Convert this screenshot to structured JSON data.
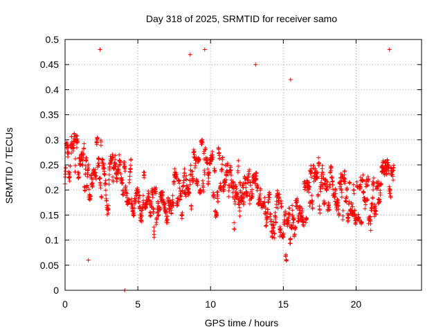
{
  "chart_data": {
    "type": "scatter",
    "title": "Day 318 of 2025, SRMTID for receiver samo",
    "xlabel": "GPS time / hours",
    "ylabel": "SRMTID / TECUs",
    "xlim": [
      0,
      24.5
    ],
    "ylim": [
      0,
      0.5
    ],
    "x_ticks": [
      0,
      5,
      10,
      15,
      20
    ],
    "x_tick_labels": [
      "0",
      "5",
      "10",
      "15",
      "20"
    ],
    "y_ticks": [
      0,
      0.05,
      0.1,
      0.15,
      0.2,
      0.25,
      0.3,
      0.35,
      0.4,
      0.45,
      0.5
    ],
    "y_tick_labels": [
      "0",
      "0.05",
      "0.1",
      "0.15",
      "0.2",
      "0.25",
      "0.3",
      "0.35",
      "0.4",
      "0.45",
      "0.5"
    ],
    "grid": true,
    "marker": "+",
    "color": "#ff0000",
    "x_range_of_data": [
      0,
      22.6
    ],
    "mean_profile": [
      [
        0.0,
        0.26
      ],
      [
        0.5,
        0.3
      ],
      [
        1.0,
        0.25
      ],
      [
        1.5,
        0.22
      ],
      [
        2.0,
        0.24
      ],
      [
        2.5,
        0.25
      ],
      [
        3.0,
        0.23
      ],
      [
        3.5,
        0.24
      ],
      [
        4.0,
        0.21
      ],
      [
        4.5,
        0.19
      ],
      [
        5.0,
        0.17
      ],
      [
        5.5,
        0.18
      ],
      [
        6.0,
        0.17
      ],
      [
        6.5,
        0.19
      ],
      [
        7.0,
        0.18
      ],
      [
        7.5,
        0.2
      ],
      [
        8.0,
        0.19
      ],
      [
        8.5,
        0.22
      ],
      [
        9.0,
        0.25
      ],
      [
        9.5,
        0.26
      ],
      [
        10.0,
        0.23
      ],
      [
        10.5,
        0.21
      ],
      [
        11.0,
        0.22
      ],
      [
        11.5,
        0.2
      ],
      [
        12.0,
        0.2
      ],
      [
        12.5,
        0.19
      ],
      [
        13.0,
        0.22
      ],
      [
        13.5,
        0.16
      ],
      [
        14.0,
        0.16
      ],
      [
        14.5,
        0.15
      ],
      [
        15.0,
        0.15
      ],
      [
        15.5,
        0.15
      ],
      [
        16.0,
        0.15
      ],
      [
        16.5,
        0.17
      ],
      [
        17.0,
        0.21
      ],
      [
        17.5,
        0.21
      ],
      [
        18.0,
        0.21
      ],
      [
        18.5,
        0.21
      ],
      [
        19.0,
        0.19
      ],
      [
        19.5,
        0.18
      ],
      [
        20.0,
        0.19
      ],
      [
        20.5,
        0.18
      ],
      [
        21.0,
        0.18
      ],
      [
        21.5,
        0.2
      ],
      [
        22.0,
        0.25
      ],
      [
        22.6,
        0.22
      ]
    ],
    "notable_points": [
      {
        "x": 2.4,
        "y": 0.48
      },
      {
        "x": 8.6,
        "y": 0.47
      },
      {
        "x": 9.6,
        "y": 0.48
      },
      {
        "x": 13.1,
        "y": 0.45
      },
      {
        "x": 22.3,
        "y": 0.48
      },
      {
        "x": 1.6,
        "y": 0.06
      },
      {
        "x": 4.1,
        "y": 0.0
      },
      {
        "x": 15.5,
        "y": 0.42
      }
    ]
  }
}
